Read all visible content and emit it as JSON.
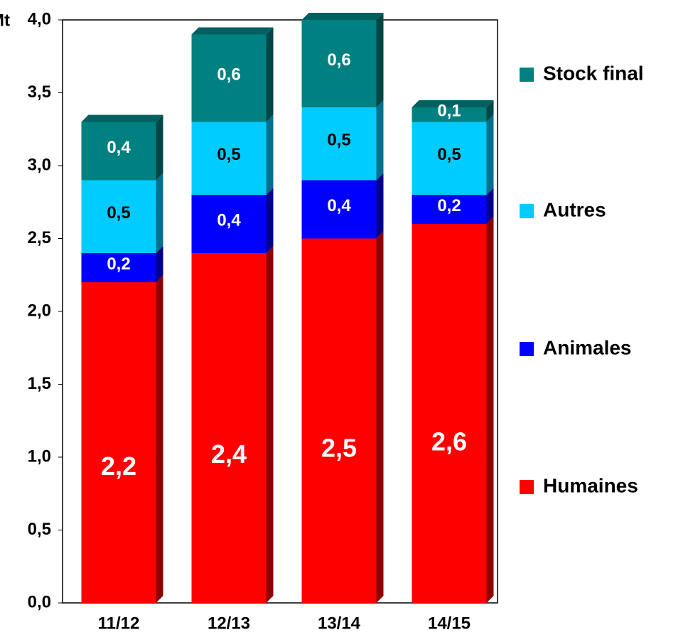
{
  "chart_data": {
    "type": "bar",
    "stacked": true,
    "y_label": "Mt",
    "categories": [
      "11/12",
      "12/13",
      "13/14",
      "14/15"
    ],
    "series": [
      {
        "name": "Humaines",
        "color": "#ff0000",
        "values": [
          2.2,
          2.4,
          2.5,
          2.6
        ],
        "value_labels": [
          "2,2",
          "2,4",
          "2,5",
          "2,6"
        ]
      },
      {
        "name": "Animales",
        "color": "#0000ff",
        "values": [
          0.2,
          0.4,
          0.4,
          0.2
        ],
        "value_labels": [
          "0,2",
          "0,4",
          "0,4",
          "0,2"
        ]
      },
      {
        "name": "Autres",
        "color": "#00ccff",
        "values": [
          0.5,
          0.5,
          0.5,
          0.5
        ],
        "value_labels": [
          "0,5",
          "0,5",
          "0,5",
          "0,5"
        ]
      },
      {
        "name": "Stock final",
        "color": "#008080",
        "values": [
          0.4,
          0.6,
          0.6,
          0.1
        ],
        "value_labels": [
          "0,4",
          "0,6",
          "0,6",
          "0,1"
        ]
      }
    ],
    "ylim": [
      0,
      4
    ],
    "yticks": [
      {
        "value": 0,
        "label": "0,0"
      },
      {
        "value": 0.5,
        "label": "0,5"
      },
      {
        "value": 1,
        "label": "1,0"
      },
      {
        "value": 1.5,
        "label": "1,5"
      },
      {
        "value": 2,
        "label": "2,0"
      },
      {
        "value": 2.5,
        "label": "2,5"
      },
      {
        "value": 3,
        "label": "3,0"
      },
      {
        "value": 3.5,
        "label": "3,5"
      },
      {
        "value": 4,
        "label": "4,0"
      }
    ],
    "legend": "right"
  }
}
